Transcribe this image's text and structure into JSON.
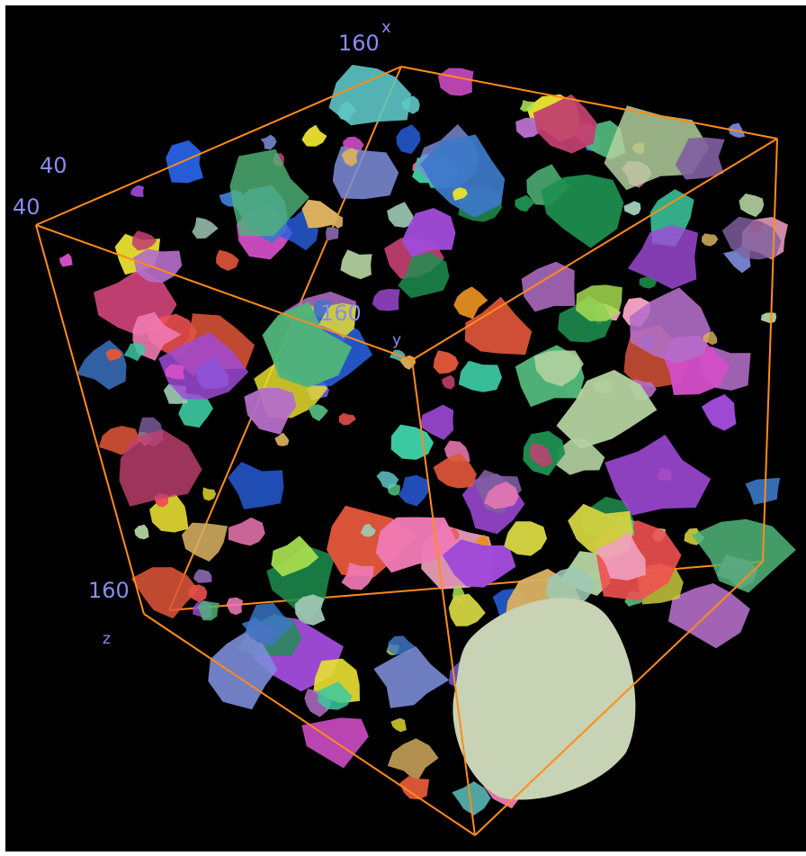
{
  "axes": {
    "x": {
      "name": "x",
      "end_label": "160"
    },
    "y": {
      "name": "y",
      "end_label": "160"
    },
    "z": {
      "name": "z",
      "end_label": "160"
    },
    "start_label_a": "40",
    "start_label_b": "40"
  },
  "colors": {
    "background": "#000000",
    "frame": "#ff8c1a",
    "label": "#8a8cf0"
  },
  "palette": [
    "#e0563a",
    "#b46ec8",
    "#7c8cd8",
    "#3c78c8",
    "#1e9050",
    "#e89020",
    "#cfcf40",
    "#9ec8b4",
    "#d24ec8",
    "#f07ab4",
    "#60c8c8",
    "#a8e050",
    "#6a5ad0",
    "#c04070",
    "#2860e0",
    "#b4d2a0",
    "#d8b060",
    "#50b478",
    "#f0a0c0",
    "#8060a0",
    "#f05050",
    "#e8e030",
    "#3cc8a0",
    "#a04ad8"
  ]
}
